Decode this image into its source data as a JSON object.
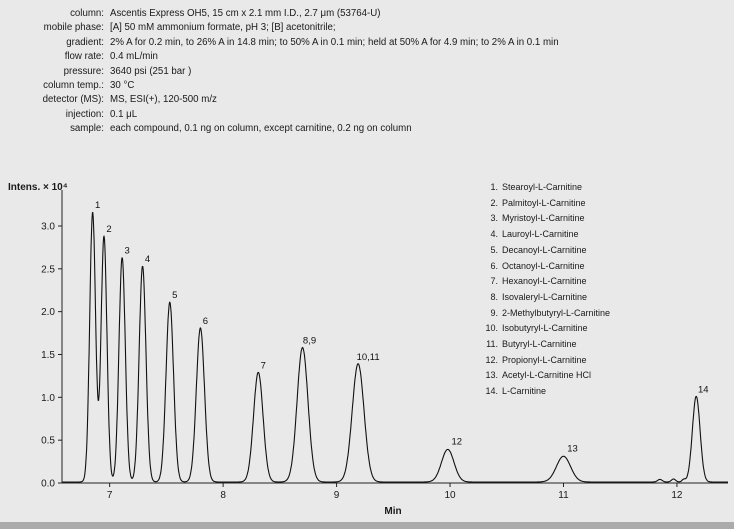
{
  "params": [
    {
      "label": "column:",
      "value": "Ascentis Express OH5, 15 cm x 2.1 mm I.D., 2.7 μm (53764-U)"
    },
    {
      "label": "mobile phase:",
      "value": "[A] 50 mM ammonium formate, pH 3; [B] acetonitrile;"
    },
    {
      "label": "gradient:",
      "value": "2% A for 0.2 min, to 26% A in 14.8 min; to 50% A in 0.1 min; held at 50% A for 4.9 min; to 2% A in 0.1 min"
    },
    {
      "label": "flow rate:",
      "value": "0.4 mL/min"
    },
    {
      "label": "pressure:",
      "value": "3640 psi (251 bar )"
    },
    {
      "label": "column temp.:",
      "value": "30 °C"
    },
    {
      "label": "detector (MS):",
      "value": "MS, ESI(+), 120-500 m/z"
    },
    {
      "label": "injection:",
      "value": "0.1 μL"
    },
    {
      "label": "sample:",
      "value": "each compound, 0.1 ng on column, except carnitine, 0.2 ng on column"
    }
  ],
  "chart_data": {
    "type": "line",
    "title": "",
    "ylabel": "Intens. × 10⁴",
    "xlabel": "Min",
    "xlim": [
      6.58,
      12.45
    ],
    "ylim": [
      0,
      3.35
    ],
    "xticks": [
      7,
      8,
      9,
      10,
      11,
      12
    ],
    "yticks": [
      0.0,
      0.5,
      1.0,
      1.5,
      2.0,
      2.5,
      3.0
    ],
    "grid": false,
    "line_color": "#111111",
    "axis_color": "#222222",
    "peaks": [
      {
        "label": "1",
        "x": 6.85,
        "height": 3.15,
        "sigma": 0.026
      },
      {
        "label": "2",
        "x": 6.95,
        "height": 2.87,
        "sigma": 0.026
      },
      {
        "label": "3",
        "x": 7.11,
        "height": 2.62,
        "sigma": 0.028
      },
      {
        "label": "4",
        "x": 7.29,
        "height": 2.52,
        "sigma": 0.03
      },
      {
        "label": "5",
        "x": 7.53,
        "height": 2.1,
        "sigma": 0.033
      },
      {
        "label": "6",
        "x": 7.8,
        "height": 1.8,
        "sigma": 0.036
      },
      {
        "label": "7",
        "x": 8.31,
        "height": 1.28,
        "sigma": 0.042
      },
      {
        "label": "8,9",
        "x": 8.7,
        "height": 1.57,
        "sigma": 0.048,
        "dx": 7
      },
      {
        "label": "10,11",
        "x": 9.19,
        "height": 1.38,
        "sigma": 0.052,
        "dx": 10
      },
      {
        "label": "12",
        "x": 9.98,
        "height": 0.38,
        "sigma": 0.055,
        "dx": 9,
        "dy": -6
      },
      {
        "label": "13",
        "x": 11.0,
        "height": 0.3,
        "sigma": 0.062,
        "dx": 9,
        "dy": -6
      },
      {
        "label": "14",
        "x": 12.17,
        "height": 1.0,
        "sigma": 0.034,
        "dx": 7
      }
    ],
    "baseline_bumps": [
      {
        "x": 11.85,
        "height": 0.03,
        "sigma": 0.02
      },
      {
        "x": 11.97,
        "height": 0.035,
        "sigma": 0.018
      },
      {
        "x": 12.06,
        "height": 0.03,
        "sigma": 0.015
      }
    ],
    "compounds": [
      {
        "num": "1.",
        "name": "Stearoyl-L-Carnitine"
      },
      {
        "num": "2.",
        "name": "Palmitoyl-L-Carnitine"
      },
      {
        "num": "3.",
        "name": "Myristoyl-L-Carnitine"
      },
      {
        "num": "4.",
        "name": "Lauroyl-L-Carnitine"
      },
      {
        "num": "5.",
        "name": "Decanoyl-L-Carnitine"
      },
      {
        "num": "6.",
        "name": "Octanoyl-L-Carnitine"
      },
      {
        "num": "7.",
        "name": "Hexanoyl-L-Carnitine"
      },
      {
        "num": "8.",
        "name": "Isovaleryl-L-Carnitine"
      },
      {
        "num": "9.",
        "name": "2-Methylbutyryl-L-Carnitine"
      },
      {
        "num": "10.",
        "name": "Isobutyryl-L-Carnitine"
      },
      {
        "num": "11.",
        "name": "Butyryl-L-Carnitine"
      },
      {
        "num": "12.",
        "name": "Propionyl-L-Carnitine"
      },
      {
        "num": "13.",
        "name": "Acetyl-L-Carnitine HCl"
      },
      {
        "num": "14.",
        "name": "L-Carnitine"
      }
    ]
  }
}
